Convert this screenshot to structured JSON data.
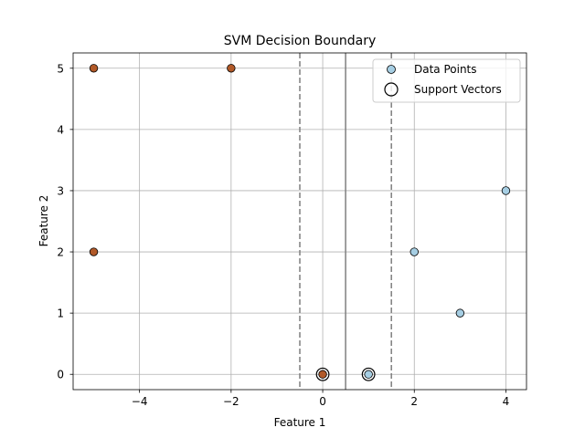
{
  "chart_data": {
    "type": "scatter",
    "title": "SVM Decision Boundary",
    "xlabel": "Feature 1",
    "ylabel": "Feature 2",
    "xlim": [
      -5.45,
      4.45
    ],
    "ylim": [
      -0.25,
      5.25
    ],
    "x_ticks": [
      -4,
      -2,
      0,
      2,
      4
    ],
    "y_ticks": [
      0,
      1,
      2,
      3,
      4,
      5
    ],
    "x_tick_labels": [
      "−4",
      "−2",
      "0",
      "2",
      "4"
    ],
    "y_tick_labels": [
      "0",
      "1",
      "2",
      "3",
      "4",
      "5"
    ],
    "grid": true,
    "legend_position": "upper-right",
    "series": [
      {
        "name": "Data Points",
        "points": [
          {
            "x": -5,
            "y": 5,
            "class": 0
          },
          {
            "x": -2,
            "y": 5,
            "class": 0
          },
          {
            "x": -5,
            "y": 2,
            "class": 0
          },
          {
            "x": 0,
            "y": 0,
            "class": 0
          },
          {
            "x": 1,
            "y": 0,
            "class": 1
          },
          {
            "x": 2,
            "y": 2,
            "class": 1
          },
          {
            "x": 3,
            "y": 1,
            "class": 1
          },
          {
            "x": 4,
            "y": 3,
            "class": 1
          }
        ]
      },
      {
        "name": "Support Vectors",
        "points": [
          {
            "x": 0,
            "y": 0
          },
          {
            "x": 1,
            "y": 0
          }
        ]
      }
    ],
    "decision_boundary": {
      "x": 0.5
    },
    "margins": [
      {
        "x": -0.5
      },
      {
        "x": 1.5
      }
    ],
    "colors": {
      "class_0": "#b15928",
      "class_1": "#a6cee3",
      "boundary": "#7f7f7f",
      "grid": "#b0b0b0"
    }
  }
}
